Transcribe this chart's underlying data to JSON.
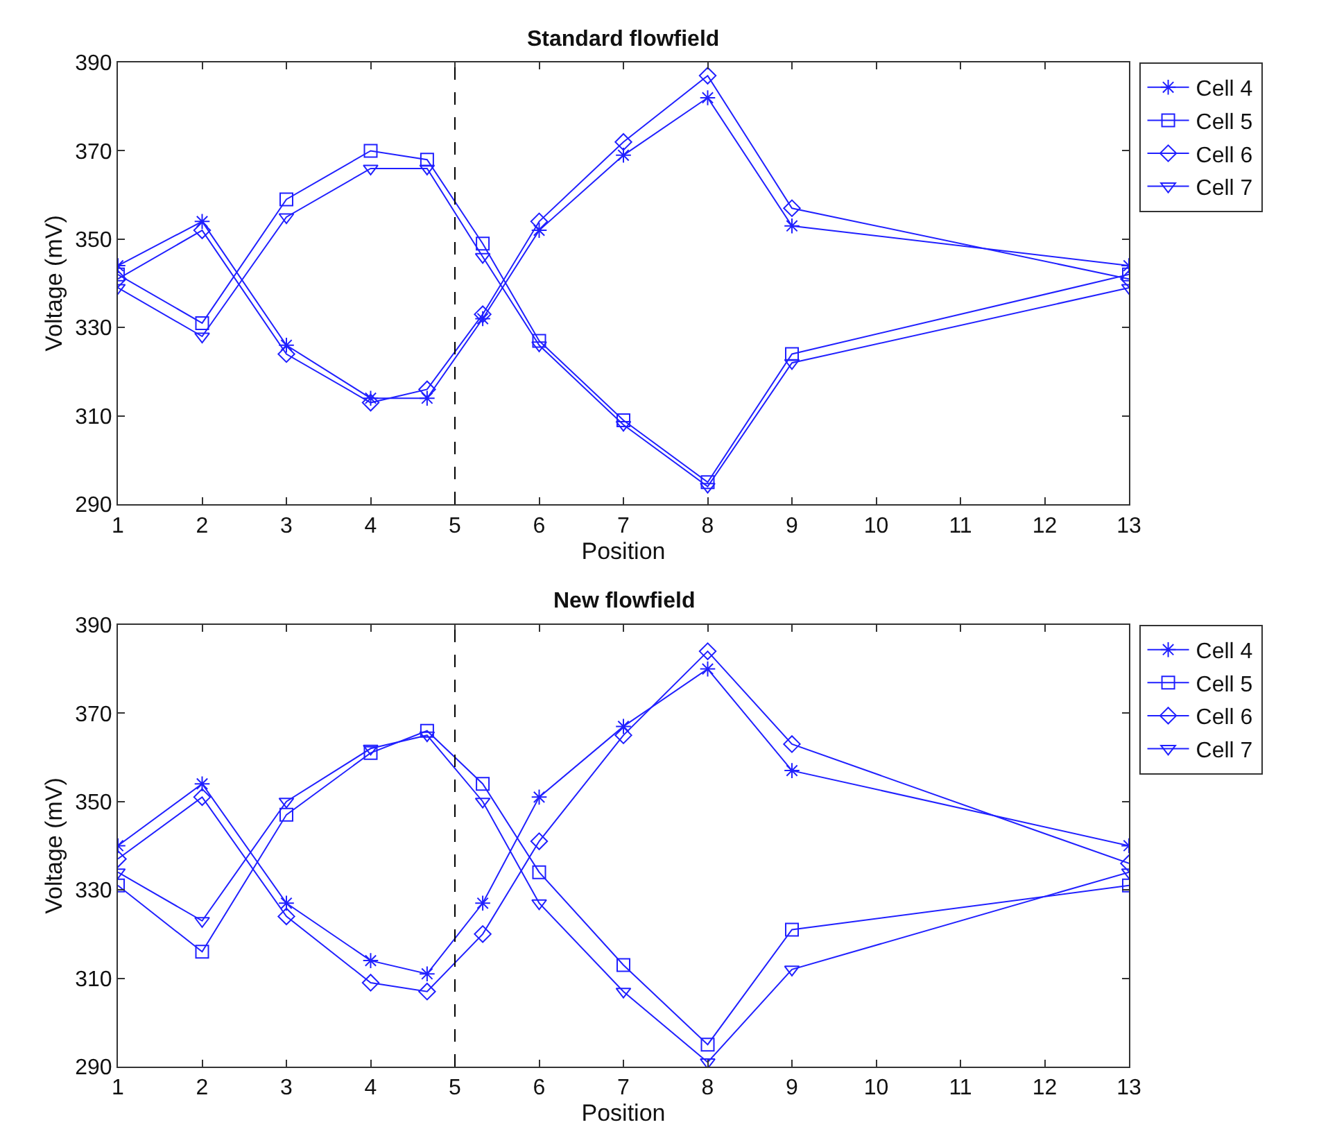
{
  "chart_data": [
    {
      "type": "line",
      "title": "Standard flowfield",
      "xlabel": "Position",
      "ylabel": "Voltage (mV)",
      "x": [
        1,
        2,
        3,
        4,
        4.67,
        5.33,
        6,
        7,
        8,
        9,
        13
      ],
      "series": [
        {
          "name": "Cell 4",
          "color": "#2020ff",
          "marker": "cross",
          "values": [
            344,
            354,
            326,
            314,
            314,
            332,
            352,
            369,
            382,
            353,
            344
          ]
        },
        {
          "name": "Cell 5",
          "color": "#2020ff",
          "marker": "square",
          "values": [
            342,
            331,
            359,
            370,
            368,
            349,
            327,
            309,
            295,
            324,
            342
          ]
        },
        {
          "name": "Cell 6",
          "color": "#2020ff",
          "marker": "diamond",
          "values": [
            341,
            352,
            324,
            313,
            316,
            333,
            354,
            372,
            387,
            357,
            341
          ]
        },
        {
          "name": "Cell 7",
          "color": "#2020ff",
          "marker": "triangle",
          "values": [
            339,
            328,
            355,
            366,
            366,
            346,
            326,
            308,
            294,
            322,
            339
          ]
        }
      ],
      "xlim": [
        1,
        13
      ],
      "xticks": [
        1,
        2,
        3,
        4,
        5,
        6,
        7,
        8,
        9,
        10,
        11,
        12,
        13
      ],
      "ylim": [
        290,
        390
      ],
      "yticks": [
        290,
        310,
        330,
        350,
        370,
        390
      ],
      "ref_lines": [
        {
          "axis": "x",
          "value": 5,
          "label": null,
          "color": "#000000",
          "line_style": "dashed"
        }
      ],
      "grid": false,
      "legend": "top right",
      "line_style": "solid"
    },
    {
      "type": "line",
      "title": "New flowfield",
      "xlabel": "Position",
      "ylabel": "Voltage (mV)",
      "x": [
        1,
        2,
        3,
        4,
        4.67,
        5.33,
        6,
        7,
        8,
        9,
        13
      ],
      "series": [
        {
          "name": "Cell 4",
          "color": "#2020ff",
          "marker": "cross",
          "values": [
            340,
            354,
            327,
            314,
            311,
            327,
            351,
            367,
            380,
            357,
            340
          ]
        },
        {
          "name": "Cell 5",
          "color": "#2020ff",
          "marker": "square",
          "values": [
            331,
            316,
            347,
            361,
            366,
            354,
            334,
            313,
            295,
            321,
            331
          ]
        },
        {
          "name": "Cell 6",
          "color": "#2020ff",
          "marker": "diamond",
          "values": [
            337,
            351,
            324,
            309,
            307,
            320,
            341,
            365,
            384,
            363,
            336
          ]
        },
        {
          "name": "Cell 7",
          "color": "#2020ff",
          "marker": "triangle",
          "values": [
            334,
            323,
            350,
            362,
            365,
            350,
            327,
            307,
            291,
            312,
            334
          ]
        }
      ],
      "xlim": [
        1,
        13
      ],
      "xticks": [
        1,
        2,
        3,
        4,
        5,
        6,
        7,
        8,
        9,
        10,
        11,
        12,
        13
      ],
      "ylim": [
        290,
        390
      ],
      "yticks": [
        290,
        310,
        330,
        350,
        370,
        390
      ],
      "ref_lines": [
        {
          "axis": "x",
          "value": 5,
          "label": null,
          "color": "#000000",
          "line_style": "dashed"
        }
      ],
      "grid": false,
      "legend": "top right",
      "line_style": "solid"
    }
  ]
}
